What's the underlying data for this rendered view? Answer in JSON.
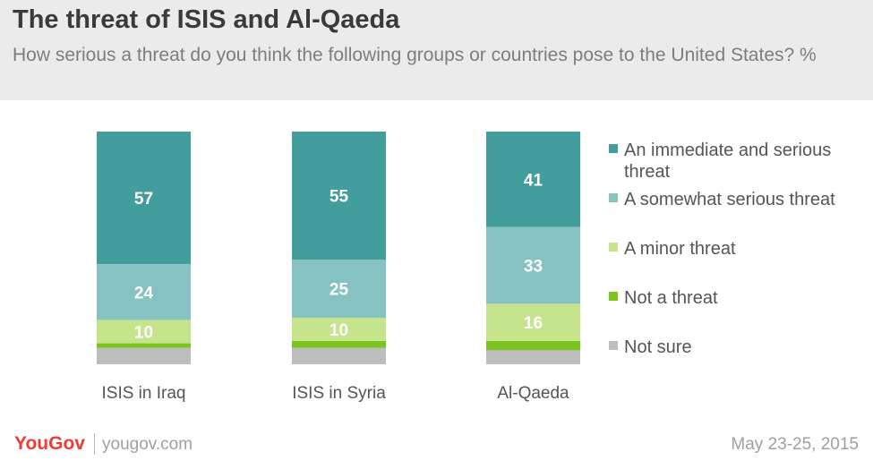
{
  "header": {
    "title": "The threat of ISIS and Al-Qaeda",
    "subtitle": "How serious a threat do you think the following groups or countries pose to the United States? %"
  },
  "footer": {
    "brand": "YouGov",
    "url": "yougov.com",
    "date": "May 23-25, 2015"
  },
  "chart_data": {
    "type": "bar",
    "stacked": true,
    "title": "The threat of ISIS and Al-Qaeda",
    "subtitle": "How serious a threat do you think the following groups or countries pose to the United States? %",
    "categories": [
      "ISIS in Iraq",
      "ISIS in Syria",
      "Al-Qaeda"
    ],
    "series": [
      {
        "name": "An immediate and serious threat",
        "color": "#419e9d",
        "values": [
          57,
          55,
          41
        ],
        "label_color": "#ffffff"
      },
      {
        "name": "A somewhat serious threat",
        "color": "#87c2c3",
        "values": [
          24,
          25,
          33
        ],
        "label_color": "#ffffff"
      },
      {
        "name": "A minor threat",
        "color": "#c6e48c",
        "values": [
          10,
          10,
          16
        ],
        "label_color": "#ffffff"
      },
      {
        "name": "Not a threat",
        "color": "#7cc520",
        "values": [
          2,
          3,
          4
        ]
      },
      {
        "name": "Not sure",
        "color": "#bdbdbd",
        "values": [
          7,
          7,
          6
        ]
      }
    ],
    "labeled_series": [
      0,
      1,
      2
    ],
    "ylim": [
      0,
      100
    ],
    "legend_position": "right",
    "grid": false
  }
}
